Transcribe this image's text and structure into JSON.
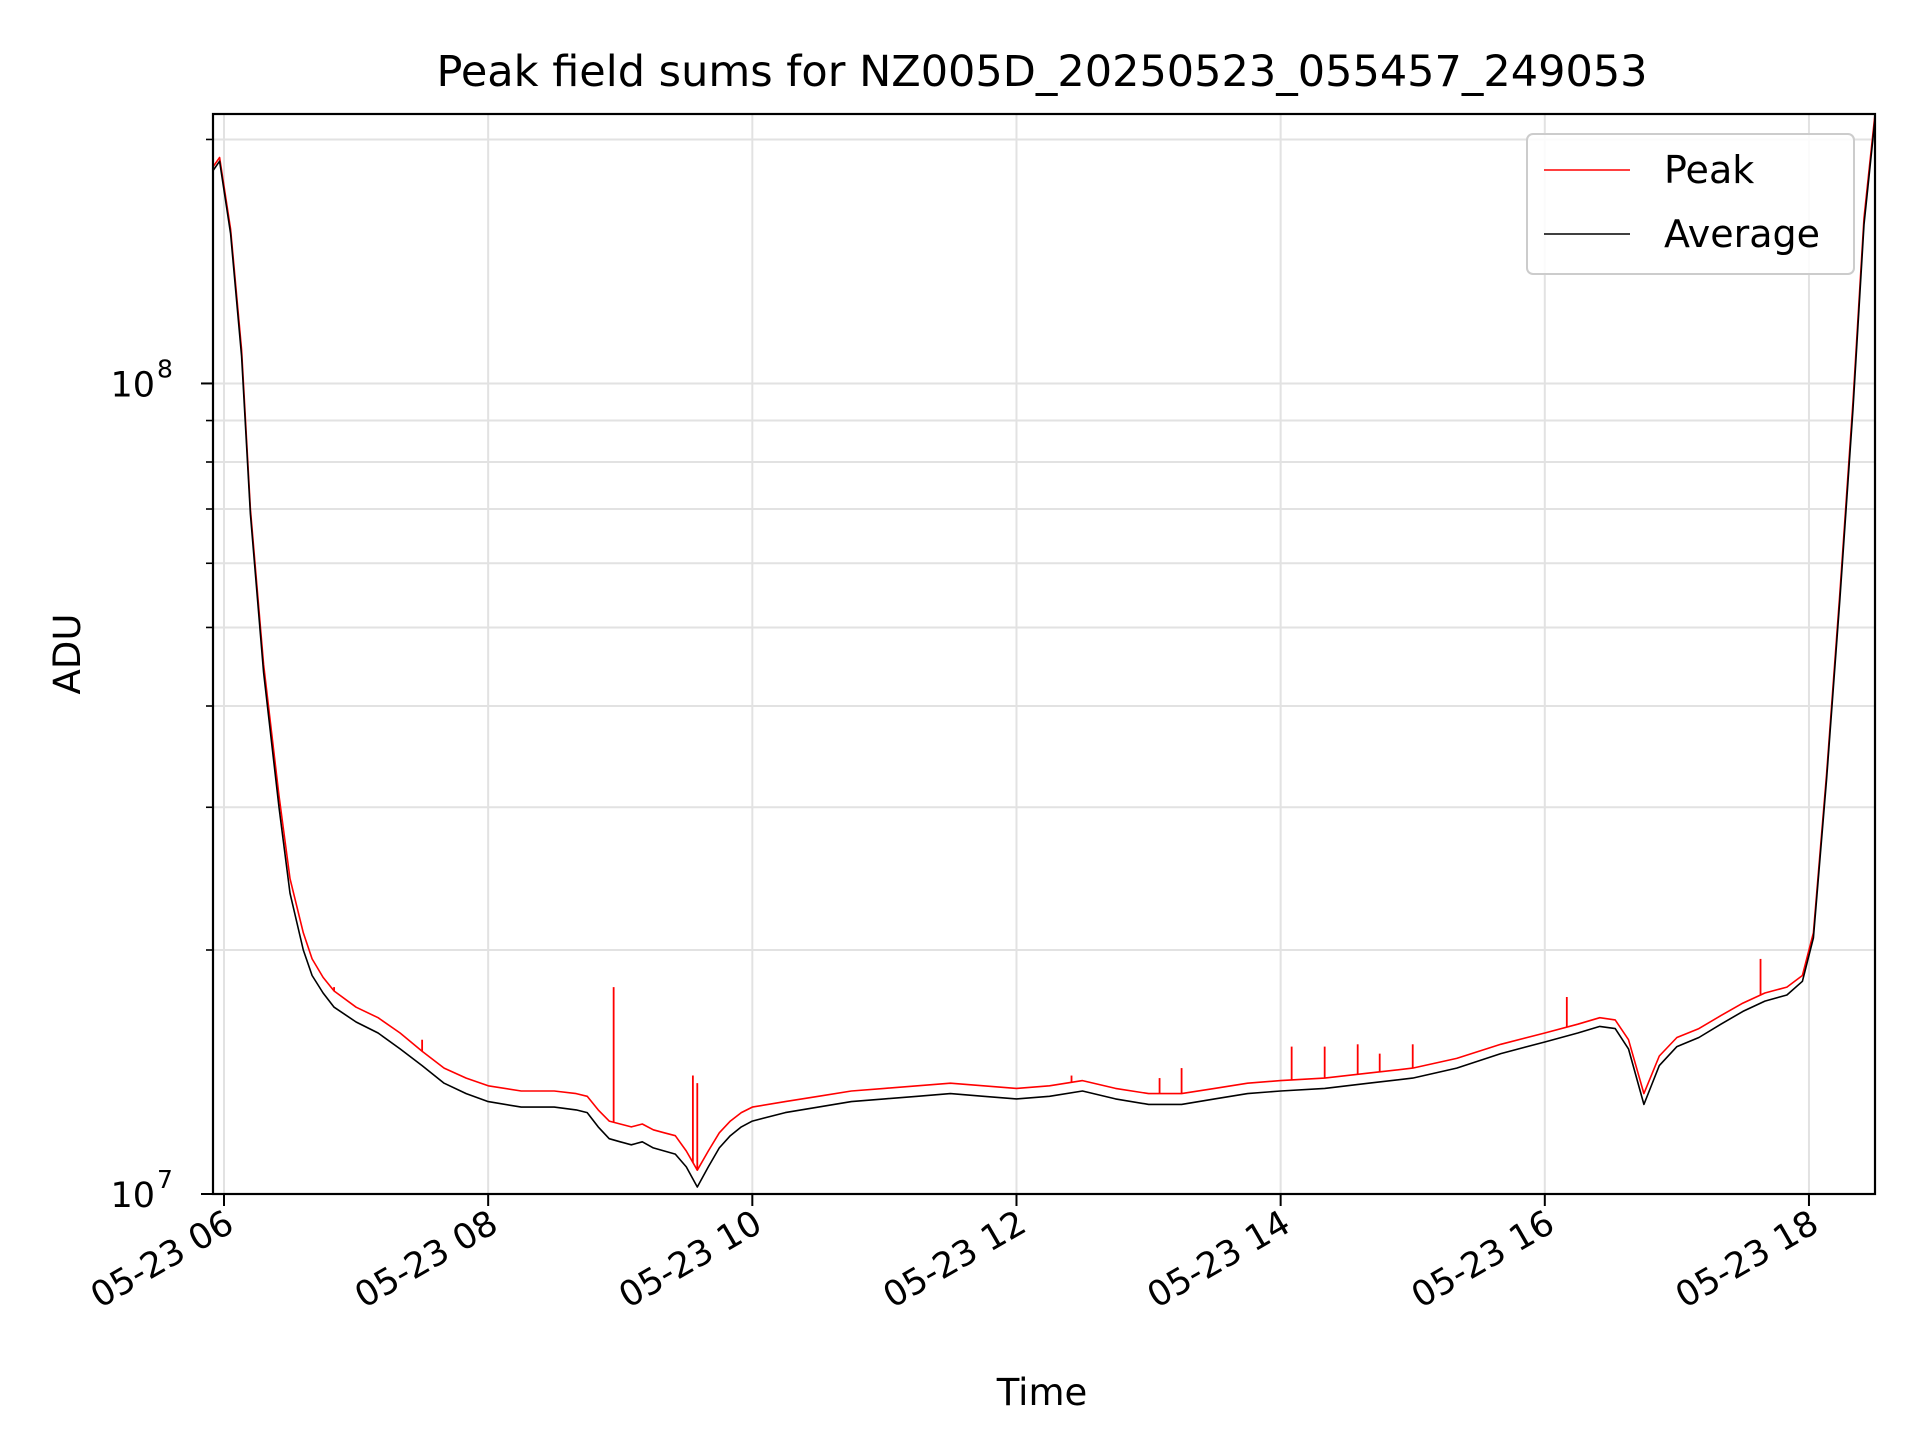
{
  "chart_data": {
    "type": "line",
    "title": "Peak field sums for NZ005D_20250523_055457_249053",
    "xlabel": "Time",
    "ylabel": "ADU",
    "xlim": [
      "2025-05-23 05:55",
      "2025-05-23 18:30"
    ],
    "ylim": [
      10000000,
      215000000
    ],
    "y_scale": "log",
    "grid": true,
    "legend_position": "top-right",
    "x_ticks": [
      {
        "value": "2025-05-23 06:00",
        "label": "05-23 06"
      },
      {
        "value": "2025-05-23 08:00",
        "label": "05-23 08"
      },
      {
        "value": "2025-05-23 10:00",
        "label": "05-23 10"
      },
      {
        "value": "2025-05-23 12:00",
        "label": "05-23 12"
      },
      {
        "value": "2025-05-23 14:00",
        "label": "05-23 14"
      },
      {
        "value": "2025-05-23 16:00",
        "label": "05-23 16"
      },
      {
        "value": "2025-05-23 18:00",
        "label": "05-23 18"
      }
    ],
    "y_ticks": [
      {
        "value": 10000000,
        "label_base": "10",
        "label_exp": "7"
      },
      {
        "value": 100000000,
        "label_base": "10",
        "label_exp": "8"
      }
    ],
    "series": [
      {
        "name": "Peak",
        "color": "#ff0000",
        "x": [
          "2025-05-23 05:55",
          "2025-05-23 05:58",
          "2025-05-23 06:03",
          "2025-05-23 06:08",
          "2025-05-23 06:12",
          "2025-05-23 06:18",
          "2025-05-23 06:25",
          "2025-05-23 06:30",
          "2025-05-23 06:36",
          "2025-05-23 06:40",
          "2025-05-23 06:45",
          "2025-05-23 06:50",
          "2025-05-23 07:00",
          "2025-05-23 07:10",
          "2025-05-23 07:20",
          "2025-05-23 07:30",
          "2025-05-23 07:40",
          "2025-05-23 07:50",
          "2025-05-23 08:00",
          "2025-05-23 08:15",
          "2025-05-23 08:30",
          "2025-05-23 08:40",
          "2025-05-23 08:45",
          "2025-05-23 08:50",
          "2025-05-23 08:55",
          "2025-05-23 09:00",
          "2025-05-23 09:05",
          "2025-05-23 09:10",
          "2025-05-23 09:15",
          "2025-05-23 09:20",
          "2025-05-23 09:25",
          "2025-05-23 09:30",
          "2025-05-23 09:35",
          "2025-05-23 09:40",
          "2025-05-23 09:45",
          "2025-05-23 09:50",
          "2025-05-23 09:55",
          "2025-05-23 10:00",
          "2025-05-23 10:15",
          "2025-05-23 10:30",
          "2025-05-23 10:45",
          "2025-05-23 11:00",
          "2025-05-23 11:15",
          "2025-05-23 11:30",
          "2025-05-23 11:45",
          "2025-05-23 12:00",
          "2025-05-23 12:15",
          "2025-05-23 12:30",
          "2025-05-23 12:45",
          "2025-05-23 13:00",
          "2025-05-23 13:15",
          "2025-05-23 13:30",
          "2025-05-23 13:45",
          "2025-05-23 14:00",
          "2025-05-23 14:20",
          "2025-05-23 14:40",
          "2025-05-23 15:00",
          "2025-05-23 15:20",
          "2025-05-23 15:40",
          "2025-05-23 16:00",
          "2025-05-23 16:15",
          "2025-05-23 16:25",
          "2025-05-23 16:32",
          "2025-05-23 16:38",
          "2025-05-23 16:45",
          "2025-05-23 16:52",
          "2025-05-23 17:00",
          "2025-05-23 17:10",
          "2025-05-23 17:20",
          "2025-05-23 17:30",
          "2025-05-23 17:40",
          "2025-05-23 17:50",
          "2025-05-23 17:57",
          "2025-05-23 18:02",
          "2025-05-23 18:08",
          "2025-05-23 18:14",
          "2025-05-23 18:20",
          "2025-05-23 18:25",
          "2025-05-23 18:30"
        ],
        "y": [
          185000000,
          190000000,
          155000000,
          110000000,
          70000000,
          45000000,
          31000000,
          24500000,
          21000000,
          19500000,
          18500000,
          17800000,
          17000000,
          16500000,
          15800000,
          15000000,
          14300000,
          13900000,
          13600000,
          13400000,
          13400000,
          13300000,
          13200000,
          12700000,
          12300000,
          12200000,
          12100000,
          12200000,
          12000000,
          11900000,
          11800000,
          11300000,
          10700000,
          11300000,
          11900000,
          12300000,
          12600000,
          12800000,
          13000000,
          13200000,
          13400000,
          13500000,
          13600000,
          13700000,
          13600000,
          13500000,
          13600000,
          13800000,
          13500000,
          13300000,
          13300000,
          13500000,
          13700000,
          13800000,
          13900000,
          14100000,
          14300000,
          14700000,
          15300000,
          15800000,
          16200000,
          16500000,
          16400000,
          15500000,
          13300000,
          14800000,
          15600000,
          16000000,
          16600000,
          17200000,
          17700000,
          18000000,
          18600000,
          21000000,
          33000000,
          55000000,
          95000000,
          160000000,
          215000000
        ],
        "spikes": [
          {
            "x": "2025-05-23 06:50",
            "y": 18000000
          },
          {
            "x": "2025-05-23 07:30",
            "y": 15500000
          },
          {
            "x": "2025-05-23 08:57",
            "y": 18000000
          },
          {
            "x": "2025-05-23 09:33",
            "y": 14000000
          },
          {
            "x": "2025-05-23 09:35",
            "y": 13700000
          },
          {
            "x": "2025-05-23 12:25",
            "y": 14000000
          },
          {
            "x": "2025-05-23 13:05",
            "y": 13900000
          },
          {
            "x": "2025-05-23 13:15",
            "y": 14300000
          },
          {
            "x": "2025-05-23 14:05",
            "y": 15200000
          },
          {
            "x": "2025-05-23 14:20",
            "y": 15200000
          },
          {
            "x": "2025-05-23 14:35",
            "y": 15300000
          },
          {
            "x": "2025-05-23 14:45",
            "y": 14900000
          },
          {
            "x": "2025-05-23 15:00",
            "y": 15300000
          },
          {
            "x": "2025-05-23 16:10",
            "y": 17500000
          },
          {
            "x": "2025-05-23 17:38",
            "y": 19500000
          }
        ]
      },
      {
        "name": "Average",
        "color": "#000000",
        "x": [
          "2025-05-23 05:55",
          "2025-05-23 05:58",
          "2025-05-23 06:03",
          "2025-05-23 06:08",
          "2025-05-23 06:12",
          "2025-05-23 06:18",
          "2025-05-23 06:25",
          "2025-05-23 06:30",
          "2025-05-23 06:36",
          "2025-05-23 06:40",
          "2025-05-23 06:45",
          "2025-05-23 06:50",
          "2025-05-23 07:00",
          "2025-05-23 07:10",
          "2025-05-23 07:20",
          "2025-05-23 07:30",
          "2025-05-23 07:40",
          "2025-05-23 07:50",
          "2025-05-23 08:00",
          "2025-05-23 08:15",
          "2025-05-23 08:30",
          "2025-05-23 08:40",
          "2025-05-23 08:45",
          "2025-05-23 08:50",
          "2025-05-23 08:55",
          "2025-05-23 09:00",
          "2025-05-23 09:05",
          "2025-05-23 09:10",
          "2025-05-23 09:15",
          "2025-05-23 09:20",
          "2025-05-23 09:25",
          "2025-05-23 09:30",
          "2025-05-23 09:35",
          "2025-05-23 09:40",
          "2025-05-23 09:45",
          "2025-05-23 09:50",
          "2025-05-23 09:55",
          "2025-05-23 10:00",
          "2025-05-23 10:15",
          "2025-05-23 10:30",
          "2025-05-23 10:45",
          "2025-05-23 11:00",
          "2025-05-23 11:15",
          "2025-05-23 11:30",
          "2025-05-23 11:45",
          "2025-05-23 12:00",
          "2025-05-23 12:15",
          "2025-05-23 12:30",
          "2025-05-23 12:45",
          "2025-05-23 13:00",
          "2025-05-23 13:15",
          "2025-05-23 13:30",
          "2025-05-23 13:45",
          "2025-05-23 14:00",
          "2025-05-23 14:20",
          "2025-05-23 14:40",
          "2025-05-23 15:00",
          "2025-05-23 15:20",
          "2025-05-23 15:40",
          "2025-05-23 16:00",
          "2025-05-23 16:15",
          "2025-05-23 16:25",
          "2025-05-23 16:32",
          "2025-05-23 16:38",
          "2025-05-23 16:45",
          "2025-05-23 16:52",
          "2025-05-23 17:00",
          "2025-05-23 17:10",
          "2025-05-23 17:20",
          "2025-05-23 17:30",
          "2025-05-23 17:40",
          "2025-05-23 17:50",
          "2025-05-23 17:57",
          "2025-05-23 18:02",
          "2025-05-23 18:08",
          "2025-05-23 18:14",
          "2025-05-23 18:20",
          "2025-05-23 18:25",
          "2025-05-23 18:30"
        ],
        "y": [
          183000000,
          188000000,
          153000000,
          108000000,
          69000000,
          44000000,
          30000000,
          23500000,
          20000000,
          18600000,
          17700000,
          17000000,
          16300000,
          15800000,
          15100000,
          14400000,
          13700000,
          13300000,
          13000000,
          12800000,
          12800000,
          12700000,
          12600000,
          12100000,
          11700000,
          11600000,
          11500000,
          11600000,
          11400000,
          11300000,
          11200000,
          10800000,
          10200000,
          10800000,
          11400000,
          11800000,
          12100000,
          12300000,
          12600000,
          12800000,
          13000000,
          13100000,
          13200000,
          13300000,
          13200000,
          13100000,
          13200000,
          13400000,
          13100000,
          12900000,
          12900000,
          13100000,
          13300000,
          13400000,
          13500000,
          13700000,
          13900000,
          14300000,
          14900000,
          15400000,
          15800000,
          16100000,
          16000000,
          15100000,
          12900000,
          14400000,
          15200000,
          15600000,
          16200000,
          16800000,
          17300000,
          17600000,
          18300000,
          20700000,
          32500000,
          54000000,
          93000000,
          157000000,
          212000000
        ]
      }
    ]
  }
}
